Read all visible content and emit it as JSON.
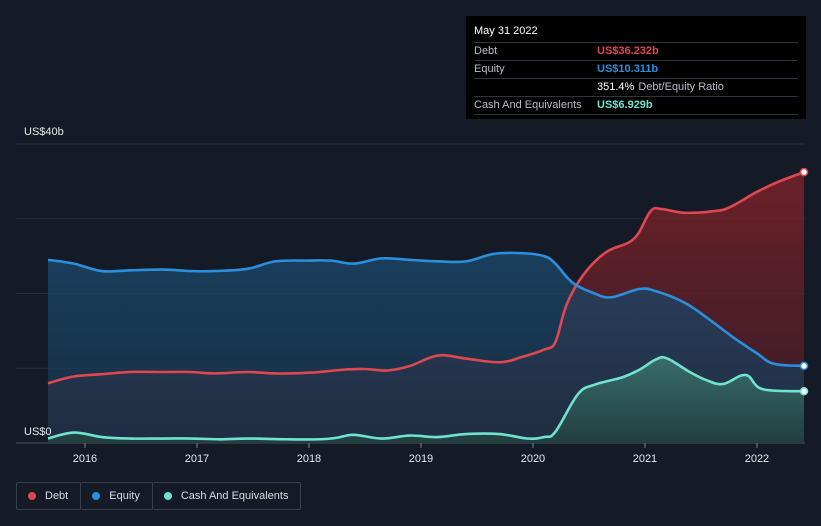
{
  "tooltip": {
    "date": "May 31 2022",
    "debt_label": "Debt",
    "debt_value": "US$36.232b",
    "equity_label": "Equity",
    "equity_value": "US$10.311b",
    "ratio_value": "351.4%",
    "ratio_label": "Debt/Equity Ratio",
    "cash_label": "Cash And Equivalents",
    "cash_value": "US$6.929b"
  },
  "legend": {
    "debt": "Debt",
    "equity": "Equity",
    "cash": "Cash And Equivalents"
  },
  "colors": {
    "background": "#151b26",
    "debt": "#e0484f",
    "equity": "#2a8fdd",
    "cash": "#6fe3cf",
    "grid": "#2b313c",
    "text": "#e6e9ee"
  },
  "chart_data": {
    "type": "area",
    "y_top_label": "US$40b",
    "y_bottom_label": "US$0",
    "ylim": [
      0,
      40
    ],
    "xlim": [
      2015.67,
      2022.42
    ],
    "x_ticks": [
      "2016",
      "2017",
      "2018",
      "2019",
      "2020",
      "2021",
      "2022"
    ],
    "x_tick_values": [
      2016,
      2017,
      2018,
      2019,
      2020,
      2021,
      2022
    ],
    "grid": true,
    "legend_position": "bottom-left",
    "series": [
      {
        "name": "Debt",
        "key": "debt",
        "points": [
          [
            2015.67,
            8.0
          ],
          [
            2015.9,
            8.9
          ],
          [
            2016.15,
            9.2
          ],
          [
            2016.4,
            9.5
          ],
          [
            2016.7,
            9.5
          ],
          [
            2016.95,
            9.5
          ],
          [
            2017.15,
            9.3
          ],
          [
            2017.45,
            9.5
          ],
          [
            2017.7,
            9.3
          ],
          [
            2018.0,
            9.4
          ],
          [
            2018.3,
            9.8
          ],
          [
            2018.5,
            9.9
          ],
          [
            2018.7,
            9.7
          ],
          [
            2018.9,
            10.3
          ],
          [
            2019.15,
            11.7
          ],
          [
            2019.4,
            11.3
          ],
          [
            2019.7,
            10.8
          ],
          [
            2019.9,
            11.5
          ],
          [
            2020.1,
            12.5
          ],
          [
            2020.2,
            13.5
          ],
          [
            2020.3,
            18.5
          ],
          [
            2020.45,
            22.5
          ],
          [
            2020.65,
            25.5
          ],
          [
            2020.9,
            27.3
          ],
          [
            2021.05,
            31.0
          ],
          [
            2021.15,
            31.3
          ],
          [
            2021.35,
            30.8
          ],
          [
            2021.6,
            31.0
          ],
          [
            2021.75,
            31.5
          ],
          [
            2022.0,
            33.6
          ],
          [
            2022.2,
            35.0
          ],
          [
            2022.42,
            36.232
          ]
        ]
      },
      {
        "name": "Equity",
        "key": "equity",
        "points": [
          [
            2015.67,
            24.5
          ],
          [
            2015.9,
            24.0
          ],
          [
            2016.15,
            23.0
          ],
          [
            2016.4,
            23.1
          ],
          [
            2016.7,
            23.2
          ],
          [
            2016.95,
            23.0
          ],
          [
            2017.15,
            23.0
          ],
          [
            2017.45,
            23.3
          ],
          [
            2017.7,
            24.3
          ],
          [
            2018.0,
            24.4
          ],
          [
            2018.2,
            24.4
          ],
          [
            2018.4,
            24.0
          ],
          [
            2018.65,
            24.7
          ],
          [
            2018.9,
            24.5
          ],
          [
            2019.15,
            24.3
          ],
          [
            2019.4,
            24.3
          ],
          [
            2019.65,
            25.3
          ],
          [
            2019.9,
            25.4
          ],
          [
            2020.1,
            25.0
          ],
          [
            2020.2,
            24.0
          ],
          [
            2020.35,
            21.5
          ],
          [
            2020.55,
            20.0
          ],
          [
            2020.7,
            19.5
          ],
          [
            2020.95,
            20.6
          ],
          [
            2021.1,
            20.3
          ],
          [
            2021.35,
            18.8
          ],
          [
            2021.55,
            16.8
          ],
          [
            2021.8,
            14.0
          ],
          [
            2022.0,
            12.0
          ],
          [
            2022.15,
            10.6
          ],
          [
            2022.42,
            10.311
          ]
        ]
      },
      {
        "name": "Cash And Equivalents",
        "key": "cash",
        "points": [
          [
            2015.67,
            0.6
          ],
          [
            2015.9,
            1.4
          ],
          [
            2016.15,
            0.8
          ],
          [
            2016.4,
            0.6
          ],
          [
            2016.7,
            0.6
          ],
          [
            2016.95,
            0.6
          ],
          [
            2017.2,
            0.5
          ],
          [
            2017.45,
            0.6
          ],
          [
            2017.8,
            0.5
          ],
          [
            2018.1,
            0.5
          ],
          [
            2018.25,
            0.7
          ],
          [
            2018.4,
            1.1
          ],
          [
            2018.65,
            0.6
          ],
          [
            2018.9,
            1.0
          ],
          [
            2019.15,
            0.8
          ],
          [
            2019.4,
            1.2
          ],
          [
            2019.7,
            1.2
          ],
          [
            2019.95,
            0.6
          ],
          [
            2020.1,
            0.8
          ],
          [
            2020.2,
            1.5
          ],
          [
            2020.4,
            6.5
          ],
          [
            2020.55,
            7.8
          ],
          [
            2020.8,
            8.8
          ],
          [
            2020.95,
            9.8
          ],
          [
            2021.1,
            11.2
          ],
          [
            2021.2,
            11.3
          ],
          [
            2021.4,
            9.5
          ],
          [
            2021.55,
            8.4
          ],
          [
            2021.7,
            7.9
          ],
          [
            2021.9,
            9.1
          ],
          [
            2022.05,
            7.2
          ],
          [
            2022.42,
            6.929
          ]
        ]
      }
    ]
  }
}
